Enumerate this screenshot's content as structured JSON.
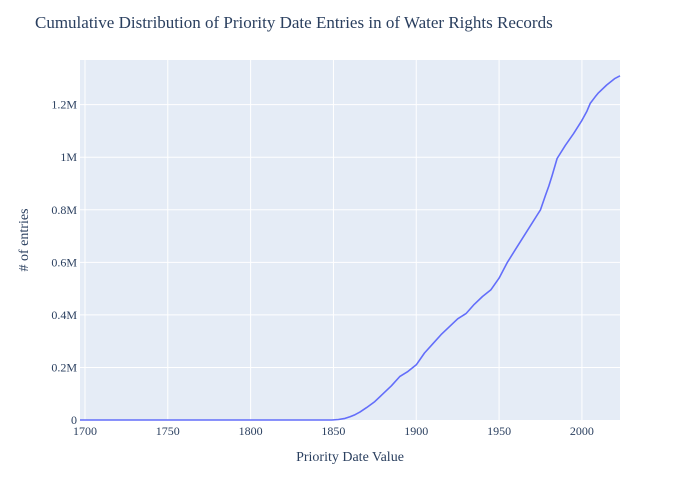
{
  "chart_data": {
    "type": "line",
    "title": "Cumulative Distribution of Priority Date Entries in of Water Rights Records",
    "xlabel": "Priority Date Value",
    "ylabel": "# of entries",
    "xlim": [
      1697,
      2023
    ],
    "ylim": [
      0,
      1370000
    ],
    "grid": true,
    "x_ticks": [
      1700,
      1750,
      1800,
      1850,
      1900,
      1950,
      2000
    ],
    "x_tick_labels": [
      "1700",
      "1750",
      "1800",
      "1850",
      "1900",
      "1950",
      "2000"
    ],
    "y_ticks": [
      0,
      200000,
      400000,
      600000,
      800000,
      1000000,
      1200000
    ],
    "y_tick_labels": [
      "0",
      "0.2M",
      "0.4M",
      "0.6M",
      "0.8M",
      "1M",
      "1.2M"
    ],
    "colors": {
      "line": "#636efa",
      "plot_bg": "#e5ecf6",
      "grid": "#ffffff"
    },
    "series": [
      {
        "x": [
          1697,
          1800,
          1849,
          1853,
          1857,
          1860,
          1863,
          1866,
          1870,
          1875,
          1880,
          1885,
          1890,
          1895,
          1900,
          1905,
          1910,
          1915,
          1920,
          1925,
          1930,
          1935,
          1940,
          1945,
          1950,
          1955,
          1960,
          1965,
          1970,
          1973,
          1975,
          1978,
          1980,
          1982,
          1985,
          1990,
          1995,
          2000,
          2003,
          2005,
          2008,
          2010,
          2015,
          2020,
          2023
        ],
        "y": [
          0,
          0,
          0,
          2000,
          6000,
          12000,
          20000,
          30000,
          47000,
          70000,
          100000,
          130000,
          165000,
          185000,
          210000,
          255000,
          290000,
          325000,
          355000,
          385000,
          405000,
          440000,
          470000,
          495000,
          540000,
          600000,
          650000,
          700000,
          750000,
          780000,
          800000,
          855000,
          890000,
          930000,
          995000,
          1045000,
          1090000,
          1140000,
          1175000,
          1205000,
          1230000,
          1245000,
          1275000,
          1300000,
          1310000
        ]
      }
    ]
  }
}
